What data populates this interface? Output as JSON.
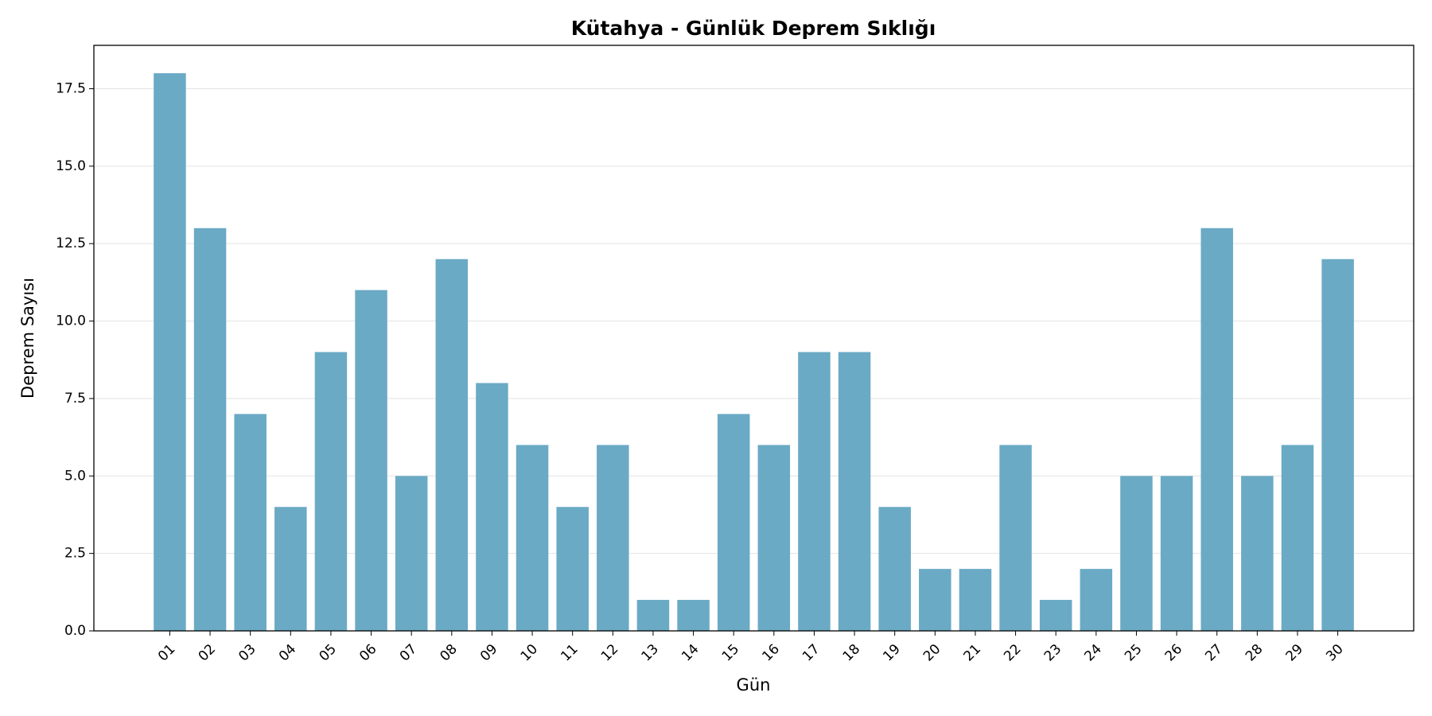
{
  "chart_data": {
    "type": "bar",
    "title": "Kütahya - Günlük Deprem Sıklığı",
    "x_label": "Gün",
    "y_label": "Deprem Sayısı",
    "categories": [
      "01",
      "02",
      "03",
      "04",
      "05",
      "06",
      "07",
      "08",
      "09",
      "10",
      "11",
      "12",
      "13",
      "14",
      "15",
      "16",
      "17",
      "18",
      "19",
      "20",
      "21",
      "22",
      "23",
      "24",
      "25",
      "26",
      "27",
      "28",
      "29",
      "30"
    ],
    "values": [
      18,
      13,
      7,
      4,
      9,
      11,
      5,
      12,
      8,
      6,
      4,
      6,
      1,
      1,
      7,
      6,
      9,
      9,
      4,
      2,
      2,
      6,
      1,
      2,
      5,
      5,
      13,
      5,
      6,
      12
    ],
    "color": "#6aaac5",
    "ylim": [
      0,
      18.9
    ],
    "yticks": [
      {
        "value": 0,
        "label": "0.0"
      },
      {
        "value": 2.5,
        "label": "2.5"
      },
      {
        "value": 5,
        "label": "5.0"
      },
      {
        "value": 7.5,
        "label": "7.5"
      },
      {
        "value": 10,
        "label": "10.0"
      },
      {
        "value": 12.5,
        "label": "12.5"
      },
      {
        "value": 15,
        "label": "15.0"
      },
      {
        "value": 17.5,
        "label": "17.5"
      }
    ],
    "grid": true
  }
}
